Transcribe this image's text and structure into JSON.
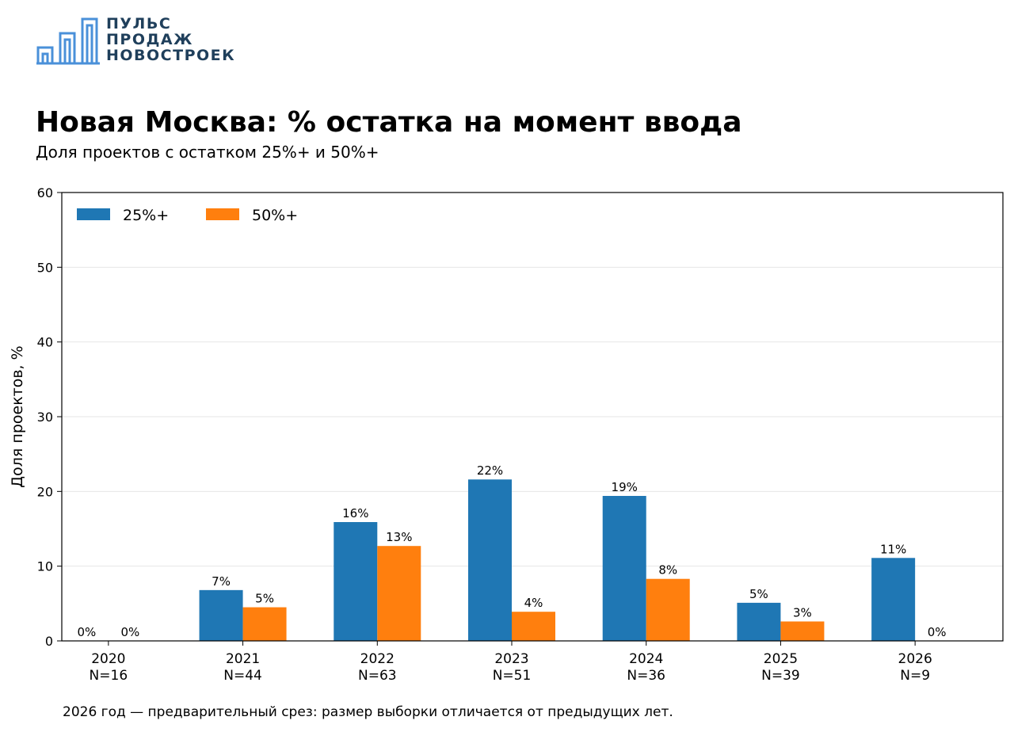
{
  "logo": {
    "lines": [
      "ПУЛЬС",
      "ПРОДАЖ",
      "НОВОСТРОЕК"
    ],
    "color": "#1f3f5b",
    "icon_color": "#4a90d9"
  },
  "header": {
    "title": "Новая Москва: % остатка на момент ввода",
    "subtitle": "Доля проектов с остатком 25%+ и 50%+"
  },
  "footnote": "2026 год — предварительный срез: размер выборки отличается от предыдущих лет.",
  "chart_data": {
    "type": "bar",
    "categories": [
      "2020",
      "2021",
      "2022",
      "2023",
      "2024",
      "2025",
      "2026"
    ],
    "category_sublabels": [
      "N=16",
      "N=44",
      "N=63",
      "N=51",
      "N=36",
      "N=39",
      "N=9"
    ],
    "series": [
      {
        "name": "25%+",
        "color": "#1f77b4",
        "values": [
          0,
          6.8,
          15.9,
          21.6,
          19.4,
          5.1,
          11.1
        ],
        "labels": [
          "0%",
          "7%",
          "16%",
          "22%",
          "19%",
          "5%",
          "11%"
        ]
      },
      {
        "name": "50%+",
        "color": "#ff7f0e",
        "values": [
          0,
          4.5,
          12.7,
          3.9,
          8.3,
          2.6,
          0
        ],
        "labels": [
          "0%",
          "5%",
          "13%",
          "4%",
          "8%",
          "3%",
          "0%"
        ]
      }
    ],
    "ylabel": "Доля проектов, %",
    "xlabel": "",
    "ylim": [
      0,
      60
    ],
    "yticks": [
      0,
      10,
      20,
      30,
      40,
      50,
      60
    ],
    "grid": "horizontal",
    "legend_position": "top-left"
  }
}
